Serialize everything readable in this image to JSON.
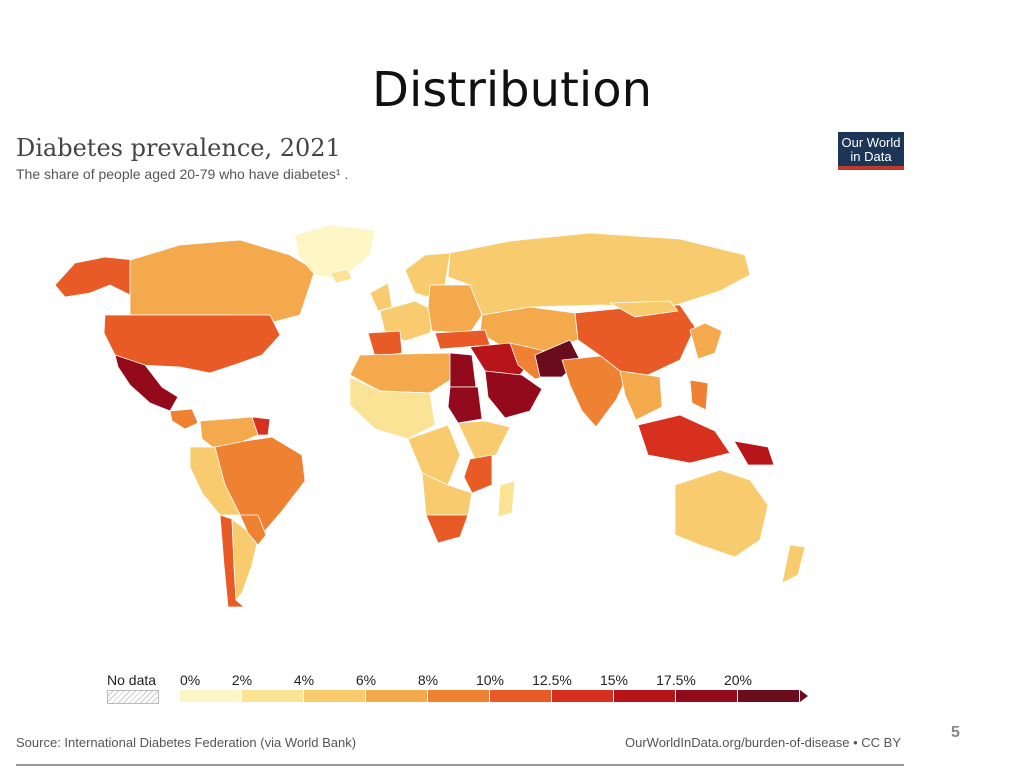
{
  "slide": {
    "title": "Distribution",
    "page_number": "5"
  },
  "chart": {
    "title": "Diabetes prevalence, 2021",
    "subtitle": "The share of people aged 20-79 who have diabetes¹ .",
    "logo_line1": "Our World",
    "logo_line2": "in Data",
    "source": "Source: International Diabetes Federation (via World Bank)",
    "url": "OurWorldInData.org/burden-of-disease • CC BY"
  },
  "legend": {
    "no_data_label": "No data",
    "ticks": [
      "0%",
      "2%",
      "4%",
      "6%",
      "8%",
      "10%",
      "12.5%",
      "15%",
      "17.5%",
      "20%"
    ],
    "colors": [
      "#fef6c4",
      "#fbe395",
      "#f8cc6e",
      "#f5a94d",
      "#ef8133",
      "#e85a26",
      "#d8301e",
      "#b71519",
      "#930a1c",
      "#6b0b1e"
    ]
  },
  "chart_data": {
    "type": "choropleth",
    "metric": "Diabetes prevalence, 2021",
    "bins": [
      {
        "range": "0%-2%",
        "color": "#fef6c4"
      },
      {
        "range": "2%-4%",
        "color": "#fbe395"
      },
      {
        "range": "4%-6%",
        "color": "#f8cc6e"
      },
      {
        "range": "6%-8%",
        "color": "#f5a94d"
      },
      {
        "range": "8%-10%",
        "color": "#ef8133"
      },
      {
        "range": "10%-12.5%",
        "color": "#e85a26"
      },
      {
        "range": "12.5%-15%",
        "color": "#d8301e"
      },
      {
        "range": "15%-17.5%",
        "color": "#b71519"
      },
      {
        "range": "17.5%-20%",
        "color": "#930a1c"
      },
      {
        "range": ">20%",
        "color": "#6b0b1e"
      }
    ],
    "regions": [
      {
        "name": "Alaska",
        "color": "#e85a26"
      },
      {
        "name": "Canada",
        "color": "#f5a94d"
      },
      {
        "name": "Greenland",
        "color": "#fef6c4"
      },
      {
        "name": "United States",
        "color": "#e85a26"
      },
      {
        "name": "Mexico",
        "color": "#930a1c"
      },
      {
        "name": "Central America",
        "color": "#ef8133"
      },
      {
        "name": "Colombia & Venezuela",
        "color": "#f5a94d"
      },
      {
        "name": "Guianas",
        "color": "#d8301e"
      },
      {
        "name": "Brazil",
        "color": "#ef8133"
      },
      {
        "name": "Peru & Bolivia",
        "color": "#f8cc6e"
      },
      {
        "name": "Chile",
        "color": "#e85a26"
      },
      {
        "name": "Argentina",
        "color": "#f8cc6e"
      },
      {
        "name": "Paraguay & Uruguay",
        "color": "#ef8133"
      },
      {
        "name": "Iceland",
        "color": "#fbe395"
      },
      {
        "name": "Scandinavia",
        "color": "#f8cc6e"
      },
      {
        "name": "UK & Ireland",
        "color": "#f8cc6e"
      },
      {
        "name": "Western Europe",
        "color": "#f8cc6e"
      },
      {
        "name": "Iberia",
        "color": "#e85a26"
      },
      {
        "name": "Eastern Europe",
        "color": "#f5a94d"
      },
      {
        "name": "Russia",
        "color": "#f8cc6e"
      },
      {
        "name": "Kazakhstan & Central Asia",
        "color": "#f5a94d"
      },
      {
        "name": "Turkey",
        "color": "#e85a26"
      },
      {
        "name": "Middle East",
        "color": "#b71519"
      },
      {
        "name": "Arabian Peninsula",
        "color": "#930a1c"
      },
      {
        "name": "Iran",
        "color": "#ef8133"
      },
      {
        "name": "Pakistan",
        "color": "#6b0b1e"
      },
      {
        "name": "India",
        "color": "#ef8133"
      },
      {
        "name": "China",
        "color": "#e85a26"
      },
      {
        "name": "Mongolia",
        "color": "#f8cc6e"
      },
      {
        "name": "Korea & Japan",
        "color": "#f5a94d"
      },
      {
        "name": "Southeast Asia",
        "color": "#f5a94d"
      },
      {
        "name": "Malaysia & Indonesia",
        "color": "#d8301e"
      },
      {
        "name": "Papua New Guinea",
        "color": "#b71519"
      },
      {
        "name": "Philippines",
        "color": "#ef8133"
      },
      {
        "name": "Australia",
        "color": "#f8cc6e"
      },
      {
        "name": "New Zealand",
        "color": "#f8cc6e"
      },
      {
        "name": "North Africa",
        "color": "#f5a94d"
      },
      {
        "name": "Egypt",
        "color": "#930a1c"
      },
      {
        "name": "Sudan",
        "color": "#930a1c"
      },
      {
        "name": "West Africa",
        "color": "#fbe395"
      },
      {
        "name": "Central Africa",
        "color": "#f8cc6e"
      },
      {
        "name": "East Africa",
        "color": "#f8cc6e"
      },
      {
        "name": "Kenya & Tanzania",
        "color": "#e85a26"
      },
      {
        "name": "Southern Africa",
        "color": "#f8cc6e"
      },
      {
        "name": "South Africa",
        "color": "#e85a26"
      },
      {
        "name": "Madagascar",
        "color": "#fbe395"
      }
    ]
  }
}
